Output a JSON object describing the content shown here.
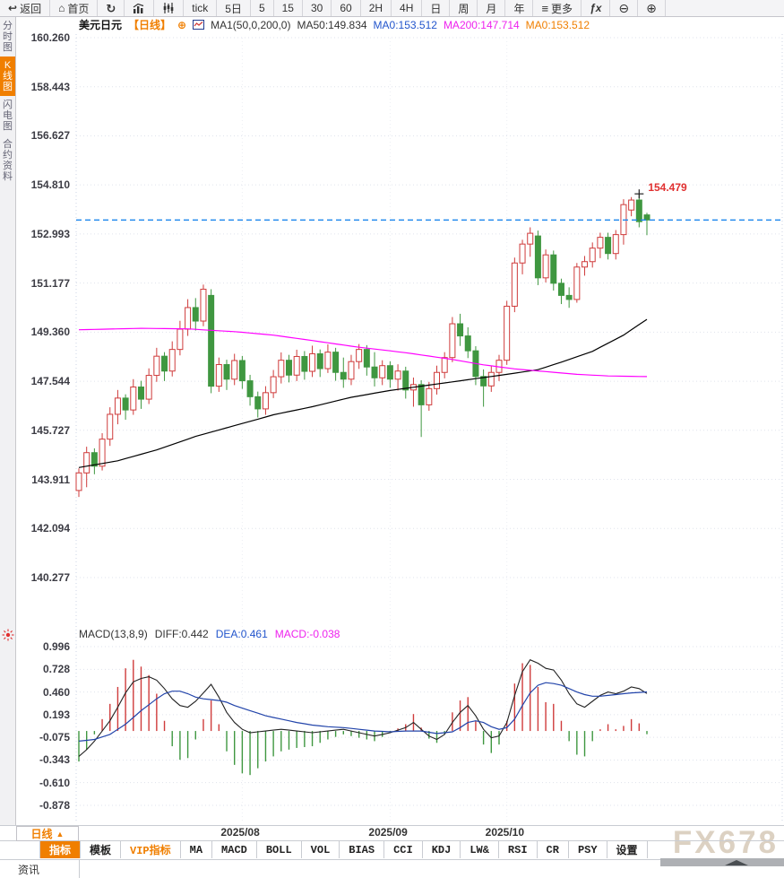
{
  "toolbar": {
    "items": [
      {
        "name": "back-button",
        "label": "返回",
        "icon": "back-arrow-icon"
      },
      {
        "name": "home-button",
        "label": "首页",
        "icon": "home-icon"
      },
      {
        "name": "refresh-button",
        "label": "",
        "icon": "refresh-icon"
      },
      {
        "name": "chart-type-bars-button",
        "label": "",
        "icon": "bar-chart-icon"
      },
      {
        "name": "chart-type-candles-button",
        "label": "",
        "icon": "candles-icon"
      },
      {
        "name": "interval-tick-button",
        "label": "tick"
      },
      {
        "name": "interval-5d-button",
        "label": "5日"
      },
      {
        "name": "interval-5m-button",
        "label": "5"
      },
      {
        "name": "interval-15m-button",
        "label": "15"
      },
      {
        "name": "interval-30m-button",
        "label": "30"
      },
      {
        "name": "interval-60m-button",
        "label": "60"
      },
      {
        "name": "interval-2h-button",
        "label": "2H"
      },
      {
        "name": "interval-4h-button",
        "label": "4H"
      },
      {
        "name": "interval-day-button",
        "label": "日"
      },
      {
        "name": "interval-week-button",
        "label": "周"
      },
      {
        "name": "interval-month-button",
        "label": "月"
      },
      {
        "name": "interval-year-button",
        "label": "年"
      },
      {
        "name": "more-button",
        "label": "更多",
        "icon": "menu-icon"
      },
      {
        "name": "indicator-fx-button",
        "label": "",
        "icon": "fx-icon"
      },
      {
        "name": "zoom-out-button",
        "label": "",
        "icon": "zoom-out-icon"
      },
      {
        "name": "zoom-in-button",
        "label": "",
        "icon": "zoom-in-icon"
      }
    ]
  },
  "sidebar": {
    "tabs": [
      {
        "label": "分时图",
        "active": false
      },
      {
        "label": "K线图",
        "active": true
      },
      {
        "label": "闪电图",
        "active": false
      },
      {
        "label": "合约资料",
        "active": false
      }
    ]
  },
  "price_header": {
    "symbol": "美元日元",
    "period_tag": "【日线】",
    "add_glyph": "⊕",
    "ma_settings": "MA1(50,0,200,0)",
    "ma50": "MA50:149.834",
    "ma0_blue": "MA0:153.512",
    "ma200": "MA200:147.714",
    "ma0_orange": "MA0:153.512"
  },
  "macd_header": {
    "title": "MACD(13,8,9)",
    "diff": "DIFF:0.442",
    "dea": "DEA:0.461",
    "macd": "MACD:-0.038"
  },
  "bottom": {
    "period_selector": "日线",
    "period_arrow": "▲",
    "tabs": [
      {
        "label": "指标",
        "style": "active"
      },
      {
        "label": "模板",
        "style": ""
      },
      {
        "label": "VIP指标",
        "style": "vip"
      },
      {
        "label": "MA",
        "style": ""
      },
      {
        "label": "MACD",
        "style": ""
      },
      {
        "label": "BOLL",
        "style": ""
      },
      {
        "label": "VOL",
        "style": ""
      },
      {
        "label": "BIAS",
        "style": ""
      },
      {
        "label": "CCI",
        "style": ""
      },
      {
        "label": "KDJ",
        "style": ""
      },
      {
        "label": "LW&",
        "style": ""
      },
      {
        "label": "RSI",
        "style": ""
      },
      {
        "label": "CR",
        "style": ""
      },
      {
        "label": "PSY",
        "style": ""
      },
      {
        "label": "设置",
        "style": ""
      }
    ],
    "news_tab": "资讯",
    "watermark": "FX678"
  },
  "colors": {
    "up": "#cf3b3b",
    "down": "#3f9740",
    "ma50": "#000000",
    "ma200": "#ff00ff",
    "diff_line": "#222222",
    "dea_line": "#2244aa",
    "last_price_line": "#1c86ee",
    "accent_orange": "#f07f00",
    "grid": "#dfe3ec",
    "high_label": "#e03030"
  },
  "chart_data": {
    "type": "candlestick",
    "title": "美元日元 USD/JPY 日线 (daily)",
    "price_axis_ticks": [
      160.26,
      158.443,
      156.627,
      154.81,
      152.993,
      151.177,
      149.36,
      147.544,
      145.727,
      143.911,
      142.094,
      140.277
    ],
    "month_ticks": [
      {
        "label": "2025/08",
        "index": 21
      },
      {
        "label": "2025/09",
        "index": 40
      },
      {
        "label": "2025/10",
        "index": 55
      }
    ],
    "last_price": 153.512,
    "high_annotation": {
      "candle_index": 72,
      "price": 154.479,
      "label": "154.479"
    },
    "candles": [
      [
        143.5,
        144.32,
        143.26,
        144.15
      ],
      [
        144.15,
        145.12,
        143.62,
        144.9
      ],
      [
        144.9,
        145.06,
        144.1,
        144.4
      ],
      [
        144.4,
        145.62,
        144.24,
        145.4
      ],
      [
        145.4,
        146.58,
        145.15,
        146.32
      ],
      [
        146.32,
        147.22,
        145.95,
        146.92
      ],
      [
        146.92,
        147.06,
        146.12,
        146.48
      ],
      [
        146.48,
        147.62,
        146.3,
        147.33
      ],
      [
        147.33,
        147.56,
        146.52,
        146.88
      ],
      [
        146.88,
        148.02,
        146.7,
        147.76
      ],
      [
        147.76,
        148.78,
        147.52,
        148.47
      ],
      [
        148.47,
        148.62,
        147.55,
        147.92
      ],
      [
        147.92,
        149.02,
        147.72,
        148.72
      ],
      [
        148.72,
        149.78,
        148.5,
        149.47
      ],
      [
        149.47,
        150.58,
        149.22,
        150.27
      ],
      [
        150.27,
        150.62,
        149.42,
        149.77
      ],
      [
        149.77,
        151.12,
        149.58,
        150.95
      ],
      [
        150.72,
        150.95,
        147.1,
        147.36
      ],
      [
        147.36,
        148.42,
        147.15,
        148.16
      ],
      [
        148.16,
        148.34,
        147.22,
        147.62
      ],
      [
        147.62,
        148.56,
        147.4,
        148.31
      ],
      [
        148.31,
        148.48,
        147.26,
        147.56
      ],
      [
        147.56,
        147.78,
        146.64,
        146.97
      ],
      [
        146.97,
        147.16,
        146.2,
        146.52
      ],
      [
        146.52,
        147.36,
        146.3,
        147.12
      ],
      [
        147.12,
        147.96,
        146.92,
        147.71
      ],
      [
        147.71,
        148.61,
        147.46,
        148.32
      ],
      [
        148.32,
        148.52,
        147.5,
        147.77
      ],
      [
        147.77,
        148.71,
        147.55,
        148.46
      ],
      [
        148.46,
        148.66,
        147.6,
        147.91
      ],
      [
        147.91,
        148.86,
        147.7,
        148.56
      ],
      [
        148.56,
        148.72,
        147.7,
        148.01
      ],
      [
        148.01,
        148.91,
        147.85,
        148.62
      ],
      [
        148.62,
        148.78,
        147.56,
        147.87
      ],
      [
        147.87,
        148.42,
        147.3,
        147.62
      ],
      [
        147.62,
        148.52,
        147.4,
        148.27
      ],
      [
        148.27,
        148.92,
        148.0,
        148.72
      ],
      [
        148.72,
        148.88,
        147.75,
        148.07
      ],
      [
        148.07,
        148.62,
        147.35,
        147.67
      ],
      [
        147.67,
        148.32,
        147.4,
        148.12
      ],
      [
        148.12,
        148.28,
        147.3,
        147.62
      ],
      [
        147.62,
        148.17,
        147.2,
        147.92
      ],
      [
        147.92,
        148.08,
        146.9,
        147.22
      ],
      [
        147.22,
        147.68,
        146.6,
        147.42
      ],
      [
        147.42,
        147.58,
        145.48,
        146.67
      ],
      [
        146.67,
        147.52,
        146.45,
        147.27
      ],
      [
        147.27,
        148.12,
        147.05,
        147.87
      ],
      [
        147.87,
        148.62,
        147.65,
        148.42
      ],
      [
        148.42,
        149.92,
        148.25,
        149.67
      ],
      [
        149.67,
        150.04,
        148.85,
        149.22
      ],
      [
        149.22,
        149.54,
        148.4,
        148.67
      ],
      [
        148.67,
        148.84,
        147.4,
        147.72
      ],
      [
        147.72,
        147.98,
        146.6,
        147.37
      ],
      [
        147.37,
        148.12,
        147.15,
        147.87
      ],
      [
        147.87,
        148.52,
        147.55,
        148.32
      ],
      [
        148.32,
        150.52,
        148.15,
        150.32
      ],
      [
        150.32,
        152.12,
        150.1,
        151.92
      ],
      [
        151.92,
        152.78,
        151.5,
        152.62
      ],
      [
        152.62,
        153.24,
        152.15,
        153.02
      ],
      [
        152.92,
        153.12,
        151.1,
        151.37
      ],
      [
        151.37,
        152.42,
        151.2,
        152.22
      ],
      [
        152.22,
        152.38,
        150.9,
        151.17
      ],
      [
        151.17,
        151.34,
        150.4,
        150.72
      ],
      [
        150.72,
        151.02,
        150.26,
        150.57
      ],
      [
        150.57,
        151.92,
        150.45,
        151.77
      ],
      [
        151.77,
        152.18,
        151.45,
        151.97
      ],
      [
        151.97,
        152.68,
        151.75,
        152.47
      ],
      [
        152.47,
        153.04,
        152.1,
        152.87
      ],
      [
        152.87,
        153.04,
        152.05,
        152.27
      ],
      [
        152.27,
        153.14,
        152.05,
        152.97
      ],
      [
        152.97,
        154.28,
        152.6,
        154.08
      ],
      [
        153.88,
        154.36,
        153.65,
        154.25
      ],
      [
        154.25,
        154.479,
        153.24,
        153.45
      ],
      [
        153.7,
        153.78,
        152.95,
        153.512
      ]
    ],
    "ma50_points": [
      [
        0,
        144.35
      ],
      [
        5,
        144.6
      ],
      [
        10,
        145.0
      ],
      [
        15,
        145.5
      ],
      [
        20,
        145.9
      ],
      [
        25,
        146.3
      ],
      [
        30,
        146.6
      ],
      [
        35,
        146.95
      ],
      [
        40,
        147.2
      ],
      [
        45,
        147.4
      ],
      [
        50,
        147.6
      ],
      [
        55,
        147.8
      ],
      [
        59,
        147.97
      ],
      [
        62,
        148.25
      ],
      [
        66,
        148.65
      ],
      [
        70,
        149.25
      ],
      [
        73,
        149.834
      ]
    ],
    "ma200_points": [
      [
        0,
        149.45
      ],
      [
        8,
        149.5
      ],
      [
        14,
        149.48
      ],
      [
        20,
        149.38
      ],
      [
        25,
        149.25
      ],
      [
        30,
        149.05
      ],
      [
        36,
        148.8
      ],
      [
        42,
        148.6
      ],
      [
        48,
        148.35
      ],
      [
        52,
        148.15
      ],
      [
        56,
        148.0
      ],
      [
        60,
        147.9
      ],
      [
        64,
        147.8
      ],
      [
        68,
        147.74
      ],
      [
        73,
        147.714
      ]
    ],
    "macd": {
      "params": "(13,8,9)",
      "axis_ticks": [
        0.996,
        0.728,
        0.46,
        0.193,
        -0.075,
        -0.343,
        -0.61,
        -0.878
      ],
      "hist_rule": "histogram = 2 * (diff - dea)",
      "diff_points": [
        [
          0,
          -0.3
        ],
        [
          1,
          -0.22
        ],
        [
          2,
          -0.12
        ],
        [
          3,
          0.0
        ],
        [
          4,
          0.12
        ],
        [
          5,
          0.28
        ],
        [
          6,
          0.45
        ],
        [
          7,
          0.58
        ],
        [
          8,
          0.62
        ],
        [
          9,
          0.64
        ],
        [
          10,
          0.6
        ],
        [
          11,
          0.5
        ],
        [
          12,
          0.38
        ],
        [
          13,
          0.3
        ],
        [
          14,
          0.28
        ],
        [
          15,
          0.35
        ],
        [
          16,
          0.45
        ],
        [
          17,
          0.55
        ],
        [
          18,
          0.4
        ],
        [
          19,
          0.22
        ],
        [
          20,
          0.1
        ],
        [
          21,
          0.02
        ],
        [
          22,
          -0.02
        ],
        [
          24,
          0.0
        ],
        [
          26,
          0.02
        ],
        [
          28,
          0.0
        ],
        [
          30,
          -0.02
        ],
        [
          32,
          0.0
        ],
        [
          34,
          0.02
        ],
        [
          36,
          -0.02
        ],
        [
          38,
          -0.06
        ],
        [
          40,
          -0.02
        ],
        [
          42,
          0.04
        ],
        [
          43,
          0.1
        ],
        [
          44,
          0.02
        ],
        [
          45,
          -0.06
        ],
        [
          46,
          -0.1
        ],
        [
          47,
          -0.04
        ],
        [
          48,
          0.1
        ],
        [
          49,
          0.22
        ],
        [
          50,
          0.3
        ],
        [
          51,
          0.18
        ],
        [
          52,
          0.02
        ],
        [
          53,
          -0.08
        ],
        [
          54,
          -0.06
        ],
        [
          55,
          0.1
        ],
        [
          56,
          0.42
        ],
        [
          57,
          0.7
        ],
        [
          58,
          0.84
        ],
        [
          59,
          0.8
        ],
        [
          60,
          0.74
        ],
        [
          61,
          0.72
        ],
        [
          62,
          0.6
        ],
        [
          63,
          0.44
        ],
        [
          64,
          0.32
        ],
        [
          65,
          0.28
        ],
        [
          66,
          0.35
        ],
        [
          67,
          0.42
        ],
        [
          68,
          0.46
        ],
        [
          69,
          0.44
        ],
        [
          70,
          0.47
        ],
        [
          71,
          0.52
        ],
        [
          72,
          0.5
        ],
        [
          73,
          0.442
        ]
      ],
      "dea_points": [
        [
          0,
          -0.12
        ],
        [
          2,
          -0.1
        ],
        [
          4,
          -0.04
        ],
        [
          6,
          0.08
        ],
        [
          8,
          0.24
        ],
        [
          10,
          0.38
        ],
        [
          11,
          0.44
        ],
        [
          12,
          0.47
        ],
        [
          13,
          0.47
        ],
        [
          14,
          0.44
        ],
        [
          15,
          0.4
        ],
        [
          16,
          0.38
        ],
        [
          17,
          0.37
        ],
        [
          18,
          0.36
        ],
        [
          19,
          0.34
        ],
        [
          20,
          0.3
        ],
        [
          22,
          0.24
        ],
        [
          24,
          0.18
        ],
        [
          26,
          0.14
        ],
        [
          28,
          0.1
        ],
        [
          30,
          0.07
        ],
        [
          32,
          0.05
        ],
        [
          34,
          0.04
        ],
        [
          36,
          0.02
        ],
        [
          38,
          0.0
        ],
        [
          40,
          -0.01
        ],
        [
          42,
          0.0
        ],
        [
          44,
          0.0
        ],
        [
          46,
          -0.03
        ],
        [
          48,
          -0.01
        ],
        [
          49,
          0.04
        ],
        [
          50,
          0.1
        ],
        [
          51,
          0.12
        ],
        [
          52,
          0.1
        ],
        [
          53,
          0.05
        ],
        [
          54,
          0.02
        ],
        [
          55,
          0.04
        ],
        [
          56,
          0.14
        ],
        [
          57,
          0.3
        ],
        [
          58,
          0.45
        ],
        [
          59,
          0.54
        ],
        [
          60,
          0.57
        ],
        [
          61,
          0.56
        ],
        [
          62,
          0.54
        ],
        [
          63,
          0.5
        ],
        [
          64,
          0.46
        ],
        [
          65,
          0.43
        ],
        [
          66,
          0.41
        ],
        [
          67,
          0.41
        ],
        [
          68,
          0.42
        ],
        [
          69,
          0.43
        ],
        [
          70,
          0.44
        ],
        [
          71,
          0.45
        ],
        [
          72,
          0.455
        ],
        [
          73,
          0.461
        ]
      ]
    }
  }
}
